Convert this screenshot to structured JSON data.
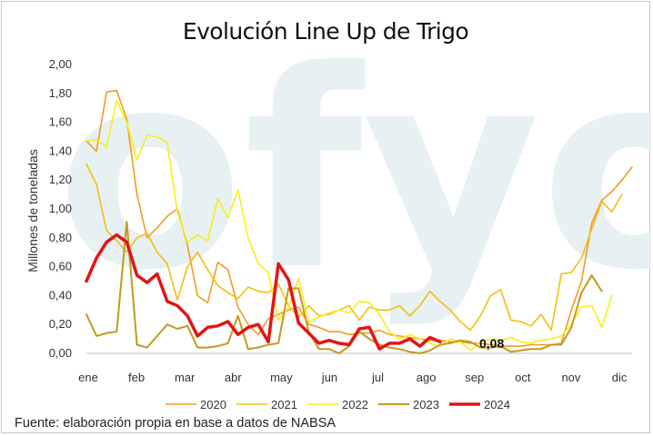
{
  "chart_data": {
    "type": "line",
    "title": "Evolución Line Up de Trigo",
    "ylabel": "Millones de toneladas",
    "xlabel": "",
    "ylim": [
      0,
      2
    ],
    "yticks": [
      "0,00",
      "0,20",
      "0,40",
      "0,60",
      "0,80",
      "1,00",
      "1,20",
      "1,40",
      "1,60",
      "1,80",
      "2,00"
    ],
    "months": [
      "ene",
      "feb",
      "mar",
      "abr",
      "may",
      "jun",
      "jul",
      "ago",
      "sep",
      "oct",
      "nov",
      "dic"
    ],
    "grid": false,
    "legend_position": "bottom",
    "watermark": "ofyo",
    "source": "Fuente: elaboración propia en base a datos de NABSA",
    "end_label": "0,08",
    "series": [
      {
        "name": "2020",
        "color": "#f39c1f",
        "width": 1.6,
        "values": [
          1.47,
          1.4,
          1.81,
          1.82,
          1.62,
          1.1,
          0.8,
          0.87,
          0.95,
          1.0,
          0.75,
          0.4,
          0.35,
          0.63,
          0.58,
          0.32,
          0.2,
          0.13,
          0.24,
          0.27,
          0.3,
          0.32,
          0.2,
          0.18,
          0.15,
          0.15,
          0.13,
          0.14,
          0.14,
          0.16,
          0.13,
          0.12,
          0.11,
          0.1,
          0.09,
          0.09,
          0.08,
          0.08,
          0.07,
          0.07,
          0.06,
          0.05,
          0.05,
          0.05,
          0.06,
          0.06,
          0.06,
          0.07,
          0.3,
          0.5,
          0.9,
          1.06,
          1.12,
          1.2,
          1.29
        ]
      },
      {
        "name": "2021",
        "color": "#f2c013",
        "width": 1.6,
        "values": [
          1.31,
          1.17,
          0.85,
          0.78,
          0.7,
          0.8,
          0.83,
          0.7,
          0.62,
          0.37,
          0.6,
          0.7,
          0.58,
          0.47,
          0.42,
          0.38,
          0.46,
          0.43,
          0.42,
          0.48,
          0.33,
          0.25,
          0.33,
          0.26,
          0.27,
          0.3,
          0.33,
          0.23,
          0.32,
          0.3,
          0.3,
          0.33,
          0.26,
          0.33,
          0.43,
          0.36,
          0.3,
          0.22,
          0.16,
          0.26,
          0.4,
          0.44,
          0.23,
          0.22,
          0.19,
          0.27,
          0.16,
          0.55,
          0.56,
          0.66,
          0.86,
          1.05,
          0.98,
          1.1
        ]
      },
      {
        "name": "2022",
        "color": "#f7ef1c",
        "width": 1.6,
        "values": [
          1.47,
          1.48,
          1.43,
          1.75,
          1.6,
          1.34,
          1.51,
          1.5,
          1.46,
          0.98,
          0.77,
          0.82,
          0.78,
          1.07,
          0.94,
          1.13,
          0.8,
          0.62,
          0.56,
          0.23,
          0.32,
          0.52,
          0.22,
          0.25,
          0.28,
          0.3,
          0.28,
          0.36,
          0.35,
          0.27,
          0.15,
          0.1,
          0.13,
          0.1,
          0.07,
          0.05,
          0.1,
          0.08,
          0.02,
          0.08,
          0.1,
          0.09,
          0.11,
          0.08,
          0.07,
          0.09,
          0.1,
          0.12,
          0.2,
          0.32,
          0.33,
          0.18,
          0.4
        ]
      },
      {
        "name": "2023",
        "color": "#c39a1e",
        "width": 2,
        "values": [
          0.27,
          0.12,
          0.14,
          0.15,
          0.91,
          0.06,
          0.04,
          0.12,
          0.2,
          0.17,
          0.19,
          0.04,
          0.04,
          0.05,
          0.07,
          0.26,
          0.03,
          0.04,
          0.06,
          0.07,
          0.45,
          0.45,
          0.15,
          0.03,
          0.03,
          0.0,
          0.05,
          0.15,
          0.1,
          0.06,
          0.04,
          0.03,
          0.01,
          0.0,
          0.02,
          0.06,
          0.07,
          0.09,
          0.08,
          0.04,
          0.04,
          0.05,
          0.01,
          0.02,
          0.03,
          0.03,
          0.06,
          0.06,
          0.18,
          0.42,
          0.54,
          0.43
        ]
      },
      {
        "name": "2024",
        "color": "#e31414",
        "width": 3.5,
        "values": [
          0.5,
          0.66,
          0.77,
          0.82,
          0.77,
          0.54,
          0.49,
          0.55,
          0.36,
          0.33,
          0.26,
          0.12,
          0.18,
          0.19,
          0.22,
          0.13,
          0.18,
          0.2,
          0.08,
          0.62,
          0.51,
          0.21,
          0.14,
          0.07,
          0.09,
          0.07,
          0.06,
          0.17,
          0.18,
          0.03,
          0.07,
          0.07,
          0.1,
          0.05,
          0.11,
          0.08
        ]
      }
    ]
  }
}
